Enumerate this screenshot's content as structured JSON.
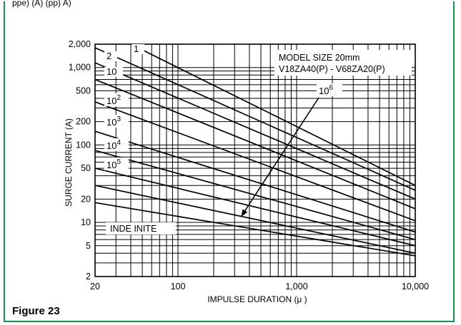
{
  "header_fragment": "ppe) (A) (pp) A)",
  "figure_caption": "Figure 23",
  "chart_data": {
    "type": "line",
    "title": "",
    "xlabel": "IMPULSE DURATION (μ )",
    "ylabel": "SURGE CURRENT (A)",
    "xscale": "log",
    "yscale": "log",
    "xlim": [
      20,
      10000
    ],
    "ylim": [
      2,
      2000
    ],
    "grid": true,
    "x_ticks": [
      {
        "value": 20,
        "label": "20"
      },
      {
        "value": 100,
        "label": "100"
      },
      {
        "value": 1000,
        "label": "1,000"
      },
      {
        "value": 10000,
        "label": "10,000"
      }
    ],
    "y_ticks": [
      {
        "value": 2,
        "label": "2"
      },
      {
        "value": 5,
        "label": "5"
      },
      {
        "value": 10,
        "label": "10"
      },
      {
        "value": 20,
        "label": "20"
      },
      {
        "value": 50,
        "label": "50"
      },
      {
        "value": 100,
        "label": "100"
      },
      {
        "value": 200,
        "label": "200"
      },
      {
        "value": 500,
        "label": "500"
      },
      {
        "value": 1000,
        "label": "1,000"
      },
      {
        "value": 2000,
        "label": "2,000"
      }
    ],
    "annotations": [
      {
        "text": "MODEL SIZE 20mm",
        "anchor": "top-right"
      },
      {
        "text": "V18ZA40(P) - V68ZA20(P)",
        "anchor": "top-right"
      },
      {
        "text": "INDE INITE",
        "anchor": "bottom-left"
      }
    ],
    "curve_labels": [
      {
        "base": "1",
        "exp": ""
      },
      {
        "base": "2",
        "exp": ""
      },
      {
        "base": "10",
        "exp": ""
      },
      {
        "base": "10",
        "exp": "2"
      },
      {
        "base": "10",
        "exp": "3"
      },
      {
        "base": "10",
        "exp": "4"
      },
      {
        "base": "10",
        "exp": "5"
      },
      {
        "base": "10",
        "exp": "6"
      }
    ],
    "series": [
      {
        "name": "1",
        "x": [
          40,
          10000
        ],
        "y": [
          2000,
          30
        ]
      },
      {
        "name": "2",
        "x": [
          20,
          10000
        ],
        "y": [
          1800,
          26
        ]
      },
      {
        "name": "10",
        "x": [
          20,
          10000
        ],
        "y": [
          1150,
          20
        ]
      },
      {
        "name": "10^2",
        "x": [
          20,
          10000
        ],
        "y": [
          700,
          15
        ]
      },
      {
        "name": "10^3",
        "x": [
          20,
          10000
        ],
        "y": [
          360,
          10.5
        ]
      },
      {
        "name": "10^4",
        "x": [
          20,
          10000
        ],
        "y": [
          150,
          7.5
        ]
      },
      {
        "name": "10^5",
        "x": [
          20,
          10000
        ],
        "y": [
          85,
          6
        ]
      },
      {
        "name": "10^6",
        "x": [
          20,
          10000
        ],
        "y": [
          50,
          5
        ]
      },
      {
        "name": "",
        "x": [
          20,
          10000
        ],
        "y": [
          30,
          4
        ]
      },
      {
        "name": "INDE INITE",
        "x": [
          20,
          10000
        ],
        "y": [
          18,
          3.7
        ]
      }
    ]
  }
}
